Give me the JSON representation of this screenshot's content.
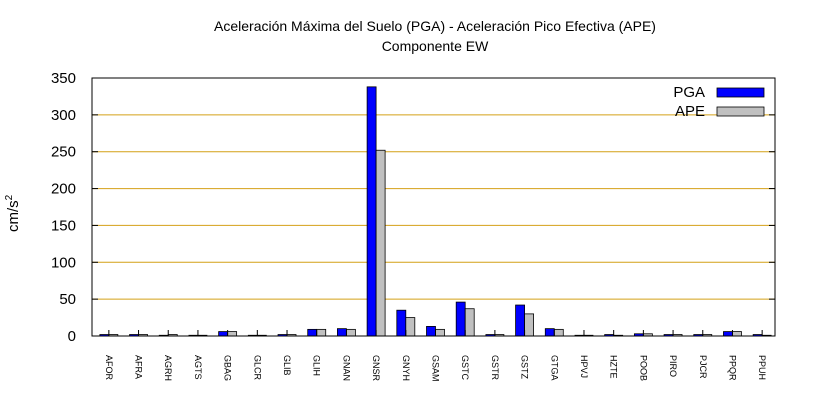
{
  "chart_data": {
    "type": "bar",
    "title": "Aceleración Máxima del Suelo (PGA) -  Aceleración Pico Efectiva (APE)",
    "subtitle": "Componente EW",
    "ylabel": "cm/s",
    "ylabel_exponent": "2",
    "xlabel": "",
    "ylim": [
      0,
      350
    ],
    "yticks": [
      0,
      50,
      100,
      150,
      200,
      250,
      300,
      350
    ],
    "grid": "horizontal",
    "legend_position": "top-right",
    "categories": [
      "AFOR",
      "AFRA",
      "AGRH",
      "AGTS",
      "GBAG",
      "GLCR",
      "GLIB",
      "GLIH",
      "GNAN",
      "GNSR",
      "GNYH",
      "GSAM",
      "GSTC",
      "GSTR",
      "GSTZ",
      "GTGA",
      "HPVJ",
      "HZTE",
      "POOB",
      "PIRO",
      "PJCR",
      "PPQR",
      "PPUH"
    ],
    "series": [
      {
        "name": "PGA",
        "color": "#0000ff",
        "values": [
          2,
          2,
          1,
          1,
          6,
          1,
          2,
          9,
          10,
          338,
          35,
          13,
          46,
          2,
          42,
          10,
          1,
          2,
          3,
          2,
          2,
          6,
          2
        ]
      },
      {
        "name": "APE",
        "color": "#c0c0c0",
        "values": [
          2,
          2,
          2,
          1,
          6,
          1,
          2,
          9,
          9,
          252,
          25,
          9,
          37,
          2,
          30,
          9,
          1,
          1,
          3,
          2,
          2,
          6,
          1
        ]
      }
    ],
    "grid_color": "#d4a017"
  }
}
